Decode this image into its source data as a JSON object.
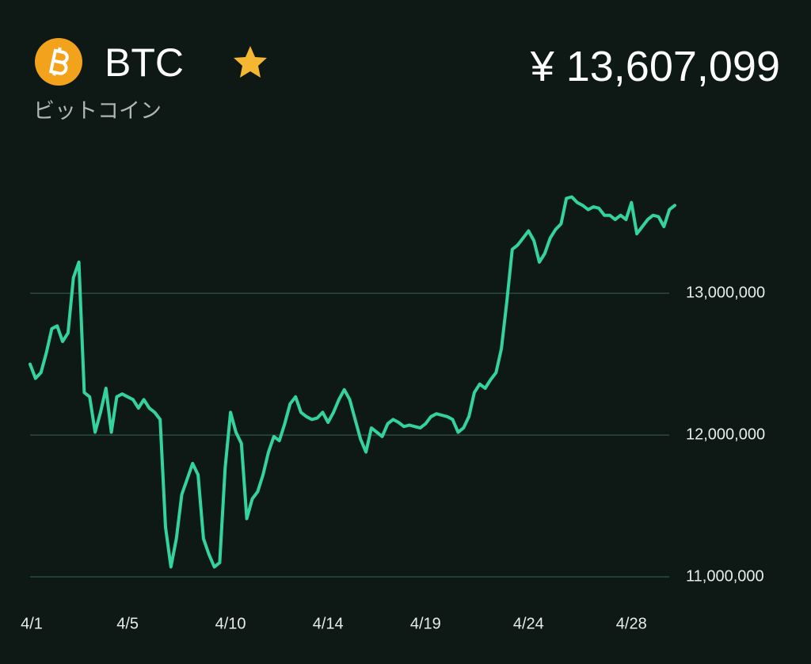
{
  "header": {
    "symbol": "BTC",
    "name": "ビットコイン",
    "price": "¥ 13,607,099"
  },
  "chart_data": {
    "type": "line",
    "categories": [
      "4/1",
      null,
      null,
      null,
      null,
      null,
      null,
      null,
      null,
      null,
      null,
      null,
      null,
      null,
      null,
      null,
      null,
      null,
      "4/5",
      null,
      null,
      null,
      null,
      null,
      null,
      null,
      null,
      null,
      null,
      null,
      null,
      null,
      null,
      null,
      null,
      null,
      null,
      "4/10",
      null,
      null,
      null,
      null,
      null,
      null,
      null,
      null,
      null,
      null,
      null,
      null,
      null,
      null,
      null,
      null,
      null,
      "4/14",
      null,
      null,
      null,
      null,
      null,
      null,
      null,
      null,
      null,
      null,
      null,
      null,
      null,
      null,
      null,
      null,
      null,
      "4/19",
      null,
      null,
      null,
      null,
      null,
      null,
      null,
      null,
      null,
      null,
      null,
      null,
      null,
      null,
      null,
      null,
      null,
      null,
      "4/24",
      null,
      null,
      null,
      null,
      null,
      null,
      null,
      null,
      null,
      null,
      null,
      null,
      null,
      null,
      null,
      null,
      null,
      null,
      "4/28",
      null,
      null,
      null,
      null,
      null,
      null,
      null,
      null
    ],
    "series": [
      {
        "color": "#34d39e",
        "values": [
          12500000,
          12400000,
          12440000,
          12580000,
          12750000,
          12770000,
          12660000,
          12720000,
          13110000,
          13220000,
          12300000,
          12270000,
          12020000,
          12160000,
          12330000,
          12020000,
          12270000,
          12290000,
          12270000,
          12250000,
          12190000,
          12250000,
          12190000,
          12160000,
          12110000,
          11350000,
          11070000,
          11270000,
          11580000,
          11690000,
          11800000,
          11720000,
          11270000,
          11160000,
          11070000,
          11100000,
          11770000,
          12160000,
          12020000,
          11940000,
          11410000,
          11550000,
          11600000,
          11720000,
          11880000,
          11990000,
          11960000,
          12080000,
          12220000,
          12270000,
          12160000,
          12130000,
          12110000,
          12120000,
          12160000,
          12090000,
          12160000,
          12250000,
          12320000,
          12250000,
          12110000,
          11970000,
          11880000,
          12050000,
          12020000,
          11990000,
          12080000,
          12110000,
          12090000,
          12060000,
          12070000,
          12060000,
          12050000,
          12080000,
          12130000,
          12150000,
          12140000,
          12130000,
          12110000,
          12020000,
          12050000,
          12130000,
          12300000,
          12360000,
          12330000,
          12390000,
          12440000,
          12610000,
          12940000,
          13310000,
          13340000,
          13390000,
          13440000,
          13370000,
          13220000,
          13280000,
          13390000,
          13450000,
          13490000,
          13670000,
          13680000,
          13640000,
          13620000,
          13590000,
          13610000,
          13600000,
          13550000,
          13550000,
          13520000,
          13550000,
          13520000,
          13640000,
          13420000,
          13470000,
          13520000,
          13550000,
          13540000,
          13470000,
          13590000,
          13620000
        ]
      }
    ],
    "ylim": [
      11000000,
      13800000
    ],
    "yticks": [
      {
        "value": 11000000,
        "label": "11,000,000"
      },
      {
        "value": 12000000,
        "label": "12,000,000"
      },
      {
        "value": 13000000,
        "label": "13,000,000"
      }
    ],
    "grid": true
  }
}
